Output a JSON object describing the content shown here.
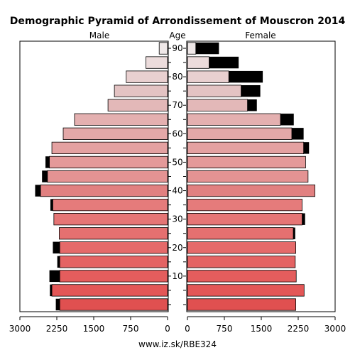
{
  "chart_data": {
    "type": "bar",
    "title": "Demographic Pyramid of Arrondissement of Mouscron 2014",
    "left_label": "Male",
    "center_label": "Age",
    "right_label": "Female",
    "footer": "www.iz.sk/RBE324",
    "x_ticks_left": [
      "3000",
      "2250",
      "1500",
      "750",
      "0"
    ],
    "x_ticks_right": [
      "0",
      "750",
      "1500",
      "2250",
      "3000"
    ],
    "age_tick_labels": [
      "10",
      "20",
      "30",
      "40",
      "50",
      "60",
      "70",
      "80",
      "90"
    ],
    "x_max": 3000,
    "age_groups": [
      "0-4",
      "5-9",
      "10-14",
      "15-19",
      "20-24",
      "25-29",
      "30-34",
      "35-39",
      "40-44",
      "45-49",
      "50-54",
      "55-59",
      "60-64",
      "65-69",
      "70-74",
      "75-79",
      "80-84",
      "85-89",
      "90+"
    ],
    "series": [
      {
        "name": "Male",
        "values": [
          2190,
          2350,
          2190,
          2190,
          2190,
          2200,
          2310,
          2330,
          2580,
          2440,
          2400,
          2350,
          2120,
          1890,
          1210,
          1080,
          840,
          440,
          170
        ]
      },
      {
        "name": "Male excess",
        "values": [
          80,
          40,
          210,
          50,
          140,
          0,
          0,
          50,
          110,
          110,
          80,
          0,
          0,
          0,
          0,
          0,
          0,
          0,
          0
        ]
      },
      {
        "name": "Female",
        "values": [
          2200,
          2370,
          2210,
          2190,
          2200,
          2150,
          2330,
          2330,
          2590,
          2450,
          2400,
          2360,
          2120,
          1890,
          1220,
          1090,
          840,
          440,
          170
        ]
      },
      {
        "name": "Female excess",
        "values": [
          0,
          0,
          0,
          0,
          0,
          40,
          60,
          0,
          0,
          0,
          0,
          110,
          240,
          270,
          190,
          390,
          690,
          600,
          470
        ]
      }
    ],
    "bar_colors": [
      "#e05050",
      "#e35757",
      "#e45d5d",
      "#e46363",
      "#e56a6a",
      "#e57070",
      "#e57575",
      "#e57b7b",
      "#e18080",
      "#e49393",
      "#e49999",
      "#e4a1a1",
      "#e4a8a8",
      "#e4b0b0",
      "#e3b8b8",
      "#e3c3c3",
      "#e9d0d0",
      "#ecdcdc",
      "#efe8e8"
    ],
    "excess_color": "#000000"
  }
}
